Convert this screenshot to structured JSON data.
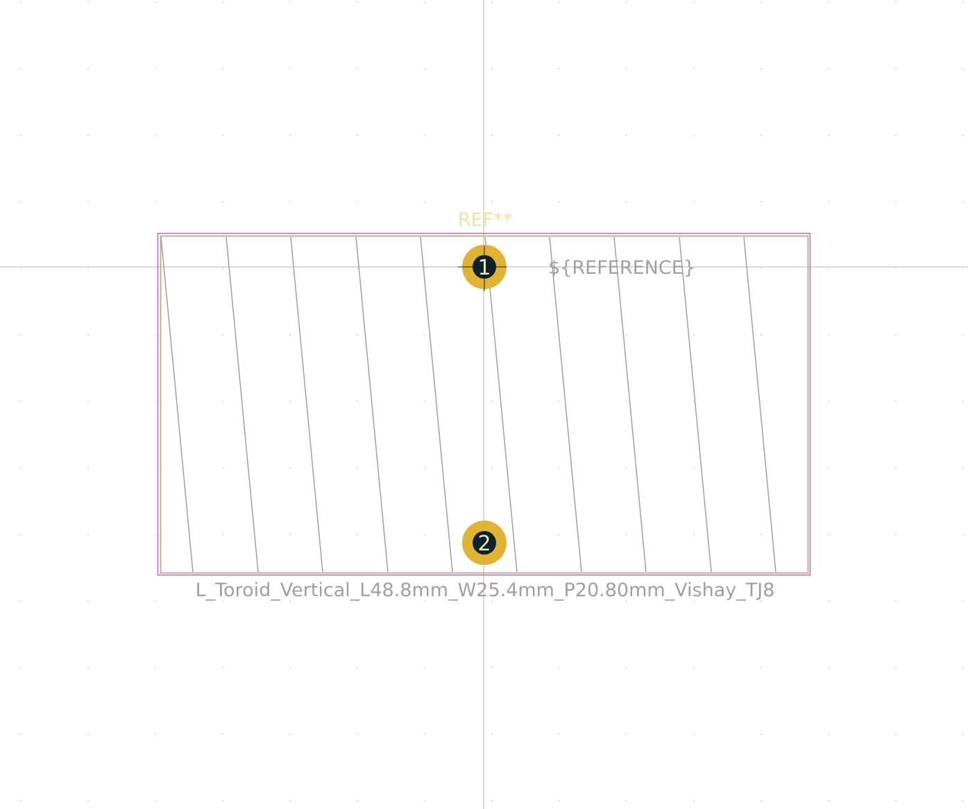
{
  "footprint": {
    "name": "L_Toroid_Vertical_L48.8mm_W25.4mm_P20.80mm_Vishay_TJ8",
    "reference": "REF**",
    "reference_field": "${REFERENCE}",
    "pads": [
      {
        "number": "1"
      },
      {
        "number": "2"
      }
    ]
  },
  "colors": {
    "background": "#ffffff",
    "grid_dot": "#c8c8c8",
    "crosshair": "#b4b4b4",
    "courtyard": "#d23cd2",
    "fab_outline": "#b9b48c",
    "fab_winding": "#a0a0a0",
    "silk_reference": "#ece6a0",
    "fab_text": "#a0a0a0",
    "pad_copper": "#e0b432",
    "pad_hole": "#0f2030",
    "pad_number": "#f0ec9c"
  }
}
